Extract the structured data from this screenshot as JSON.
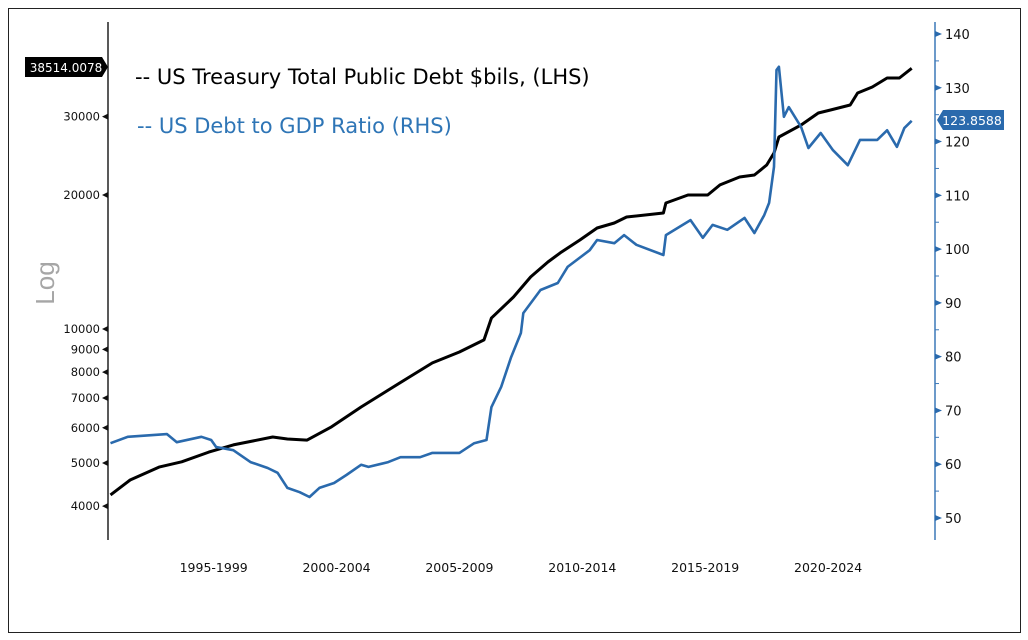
{
  "chart_data": {
    "type": "line",
    "title": "",
    "legend_placement": "top-left",
    "grid": false,
    "left_axis": {
      "label": "Log",
      "scale": "log",
      "range": [
        3600,
        42000
      ],
      "ticks": [
        4000,
        5000,
        6000,
        7000,
        8000,
        9000,
        10000,
        20000,
        30000
      ],
      "tick_labels": [
        "4000",
        "5000",
        "6000",
        "7000",
        "8000",
        "9000",
        "10000",
        "20000",
        "30000"
      ]
    },
    "right_axis": {
      "scale": "linear",
      "range": [
        46,
        142
      ],
      "ticks": [
        50,
        60,
        70,
        80,
        90,
        100,
        110,
        120,
        130,
        140
      ],
      "tick_labels": [
        "50",
        "60",
        "70",
        "80",
        "90",
        "100",
        "110",
        "120",
        "130",
        "140"
      ]
    },
    "x_axis": {
      "range": [
        1993.2,
        2026.85
      ],
      "categories": [
        "1995-1999",
        "2000-2004",
        "2005-2009",
        "2010-2014",
        "2015-2019",
        "2020-2024"
      ],
      "category_ranges": [
        [
          1995,
          2000
        ],
        [
          2000,
          2005
        ],
        [
          2005,
          2010
        ],
        [
          2010,
          2015
        ],
        [
          2015,
          2020
        ],
        [
          2020,
          2025
        ]
      ]
    },
    "series": [
      {
        "name": "-- US Treasury Total Public Debt $bils, (LHS)",
        "axis": "left",
        "color": "#000000",
        "last_value_label": "38514.0078",
        "x": [
          1993.3,
          1994.1,
          1995.3,
          1996.2,
          1997.3,
          1998.3,
          1999.9,
          2000.5,
          2001.3,
          2002.3,
          2003.5,
          2004.6,
          2005.4,
          2006.4,
          2007.5,
          2008.5,
          2008.8,
          2009.7,
          2010.4,
          2011.1,
          2011.6,
          2012.4,
          2013.1,
          2013.8,
          2014.3,
          2015.8,
          2015.9,
          2016.8,
          2017.6,
          2018.1,
          2018.9,
          2019.5,
          2020.0,
          2020.3,
          2020.5,
          2021.4,
          2022.1,
          2022.6,
          2023.4,
          2023.7,
          2024.3,
          2024.9,
          2025.4,
          2025.9
        ],
        "y": [
          4240,
          4580,
          4900,
          5030,
          5290,
          5490,
          5720,
          5660,
          5630,
          6030,
          6680,
          7290,
          7760,
          8390,
          8880,
          9450,
          10580,
          11800,
          13090,
          14140,
          14820,
          15850,
          16860,
          17300,
          17850,
          18220,
          19190,
          20000,
          20000,
          21070,
          21950,
          22180,
          23360,
          24850,
          27000,
          28720,
          30560,
          31040,
          31860,
          33900,
          34970,
          36630,
          36630,
          38514.0078
        ]
      },
      {
        "name": "-- US Debt to GDP Ratio (RHS)",
        "axis": "right",
        "color": "#2a6aad",
        "last_value_label": "123.8588",
        "x": [
          1993.3,
          1994.0,
          1995.6,
          1996.0,
          1997.0,
          1997.4,
          1997.6,
          1998.3,
          1999.0,
          1999.7,
          2000.1,
          2000.5,
          2001.0,
          2001.4,
          2001.8,
          2002.4,
          2002.9,
          2003.5,
          2003.8,
          2004.6,
          2005.1,
          2005.9,
          2006.4,
          2007.5,
          2008.1,
          2008.6,
          2008.8,
          2009.2,
          2009.6,
          2010.0,
          2010.1,
          2010.8,
          2011.5,
          2011.9,
          2012.8,
          2013.1,
          2013.8,
          2014.2,
          2014.7,
          2015.8,
          2015.9,
          2016.9,
          2017.4,
          2017.8,
          2018.4,
          2019.1,
          2019.5,
          2019.9,
          2020.1,
          2020.3,
          2020.4,
          2020.5,
          2020.7,
          2020.9,
          2021.4,
          2021.7,
          2022.2,
          2022.7,
          2023.3,
          2023.8,
          2024.5,
          2024.9,
          2025.3,
          2025.6,
          2025.9
        ],
        "y": [
          63.9,
          65.1,
          65.6,
          64.1,
          65.1,
          64.5,
          63.2,
          62.6,
          60.4,
          59.3,
          58.4,
          55.6,
          54.8,
          53.9,
          55.6,
          56.5,
          58.0,
          59.9,
          59.5,
          60.4,
          61.3,
          61.3,
          62.1,
          62.1,
          63.9,
          64.5,
          70.6,
          74.4,
          79.9,
          84.4,
          88.1,
          92.4,
          93.7,
          96.7,
          99.8,
          101.7,
          101.1,
          102.6,
          100.8,
          98.9,
          102.6,
          105.4,
          102.1,
          104.5,
          103.6,
          105.8,
          103.0,
          106.3,
          108.6,
          115.3,
          133.3,
          133.9,
          124.6,
          126.4,
          122.7,
          118.8,
          121.6,
          118.4,
          115.6,
          120.3,
          120.3,
          122.1,
          119.0,
          122.5,
          123.8588
        ]
      }
    ]
  }
}
